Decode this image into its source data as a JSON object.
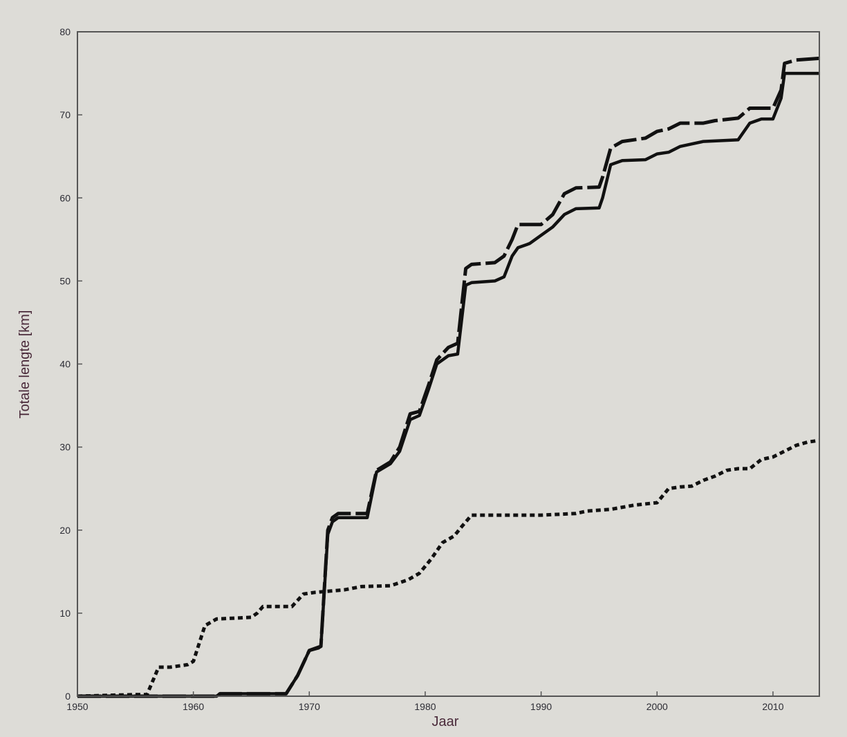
{
  "chart_data": {
    "type": "line",
    "title": "",
    "xlabel": "Jaar",
    "ylabel": "Totale lengte [km]",
    "xlim": [
      1950,
      2014
    ],
    "ylim": [
      0,
      80
    ],
    "xticks": [
      "1950",
      "1960",
      "1970",
      "1980",
      "1990",
      "2000",
      "2010"
    ],
    "yticks": [
      "0",
      "10",
      "20",
      "30",
      "40",
      "50",
      "60",
      "70",
      "80"
    ],
    "grid": false,
    "legend": "none",
    "colors": {
      "background": "#dddcd7",
      "plot_area": "#dddcd7",
      "axis": "#555555",
      "lines": "#111111"
    },
    "series": [
      {
        "style": "solid",
        "points": [
          [
            1950,
            0
          ],
          [
            1962,
            0
          ],
          [
            1962.3,
            0.3
          ],
          [
            1968,
            0.3
          ],
          [
            1969,
            2.5
          ],
          [
            1970,
            5.5
          ],
          [
            1970.8,
            5.8
          ],
          [
            1971,
            6
          ],
          [
            1971.6,
            19.5
          ],
          [
            1972,
            21
          ],
          [
            1972.5,
            21.5
          ],
          [
            1975,
            21.5
          ],
          [
            1975.8,
            27
          ],
          [
            1977,
            28
          ],
          [
            1977.8,
            29.5
          ],
          [
            1978.7,
            33.3
          ],
          [
            1979.5,
            33.8
          ],
          [
            1980.3,
            37
          ],
          [
            1981,
            40
          ],
          [
            1982,
            41
          ],
          [
            1982.8,
            41.2
          ],
          [
            1983.5,
            49.5
          ],
          [
            1984,
            49.8
          ],
          [
            1986,
            50
          ],
          [
            1986.8,
            50.5
          ],
          [
            1987.5,
            53
          ],
          [
            1988,
            54
          ],
          [
            1989,
            54.5
          ],
          [
            1990,
            55.5
          ],
          [
            1991,
            56.5
          ],
          [
            1992,
            58
          ],
          [
            1993,
            58.7
          ],
          [
            1995,
            58.8
          ],
          [
            1995.3,
            60
          ],
          [
            1996,
            64
          ],
          [
            1997,
            64.5
          ],
          [
            1999,
            64.6
          ],
          [
            2000,
            65.3
          ],
          [
            2001,
            65.5
          ],
          [
            2002,
            66.2
          ],
          [
            2003,
            66.5
          ],
          [
            2004,
            66.8
          ],
          [
            2007,
            67
          ],
          [
            2008,
            69
          ],
          [
            2009,
            69.5
          ],
          [
            2010,
            69.5
          ],
          [
            2010.7,
            72
          ],
          [
            2011,
            75
          ],
          [
            2014,
            75
          ]
        ]
      },
      {
        "style": "dashed",
        "points": [
          [
            1950,
            0
          ],
          [
            1962,
            0
          ],
          [
            1962.3,
            0.3
          ],
          [
            1968,
            0.3
          ],
          [
            1969,
            2.5
          ],
          [
            1970,
            5.5
          ],
          [
            1971,
            6
          ],
          [
            1971.6,
            20
          ],
          [
            1972,
            21.5
          ],
          [
            1972.5,
            22
          ],
          [
            1975,
            22
          ],
          [
            1975.8,
            27.2
          ],
          [
            1977,
            28.2
          ],
          [
            1977.8,
            30
          ],
          [
            1978.7,
            34
          ],
          [
            1979.5,
            34.3
          ],
          [
            1980.3,
            37.5
          ],
          [
            1981,
            40.5
          ],
          [
            1982,
            42
          ],
          [
            1982.8,
            42.5
          ],
          [
            1983.5,
            51.5
          ],
          [
            1984,
            52
          ],
          [
            1986,
            52.2
          ],
          [
            1986.8,
            53
          ],
          [
            1987.5,
            55
          ],
          [
            1988,
            56.8
          ],
          [
            1990,
            56.8
          ],
          [
            1991,
            58
          ],
          [
            1992,
            60.5
          ],
          [
            1993,
            61.2
          ],
          [
            1995,
            61.3
          ],
          [
            1995.3,
            62.5
          ],
          [
            1996,
            66
          ],
          [
            1997,
            66.8
          ],
          [
            1999,
            67.2
          ],
          [
            2000,
            68
          ],
          [
            2001,
            68.3
          ],
          [
            2002,
            69
          ],
          [
            2004,
            69
          ],
          [
            2005,
            69.3
          ],
          [
            2007,
            69.6
          ],
          [
            2008,
            70.8
          ],
          [
            2010,
            70.8
          ],
          [
            2010.7,
            73
          ],
          [
            2011,
            76.2
          ],
          [
            2012,
            76.6
          ],
          [
            2014,
            76.8
          ]
        ]
      },
      {
        "style": "dotted",
        "points": [
          [
            1950,
            0
          ],
          [
            1955,
            0.2
          ],
          [
            1956,
            0.2
          ],
          [
            1957,
            3.5
          ],
          [
            1958,
            3.5
          ],
          [
            1959.5,
            3.8
          ],
          [
            1960,
            4.2
          ],
          [
            1961,
            8.5
          ],
          [
            1962,
            9.3
          ],
          [
            1965,
            9.5
          ],
          [
            1965.5,
            10
          ],
          [
            1966,
            10.8
          ],
          [
            1968.5,
            10.8
          ],
          [
            1969.5,
            12.3
          ],
          [
            1970.5,
            12.5
          ],
          [
            1973,
            12.8
          ],
          [
            1974.5,
            13.2
          ],
          [
            1977,
            13.3
          ],
          [
            1978.5,
            14
          ],
          [
            1979.5,
            14.8
          ],
          [
            1980.5,
            16.5
          ],
          [
            1981.5,
            18.5
          ],
          [
            1982.5,
            19.3
          ],
          [
            1983.2,
            20.5
          ],
          [
            1984,
            21.8
          ],
          [
            1987,
            21.8
          ],
          [
            1990,
            21.8
          ],
          [
            1993,
            22
          ],
          [
            1994,
            22.3
          ],
          [
            1996,
            22.5
          ],
          [
            1998,
            23
          ],
          [
            2000,
            23.3
          ],
          [
            2001,
            25
          ],
          [
            2002,
            25.2
          ],
          [
            2003,
            25.3
          ],
          [
            2004,
            26
          ],
          [
            2005,
            26.5
          ],
          [
            2006,
            27.2
          ],
          [
            2007,
            27.4
          ],
          [
            2008,
            27.4
          ],
          [
            2009,
            28.5
          ],
          [
            2010,
            28.8
          ],
          [
            2011,
            29.5
          ],
          [
            2012,
            30.2
          ],
          [
            2013,
            30.6
          ],
          [
            2014,
            30.8
          ]
        ]
      }
    ]
  }
}
